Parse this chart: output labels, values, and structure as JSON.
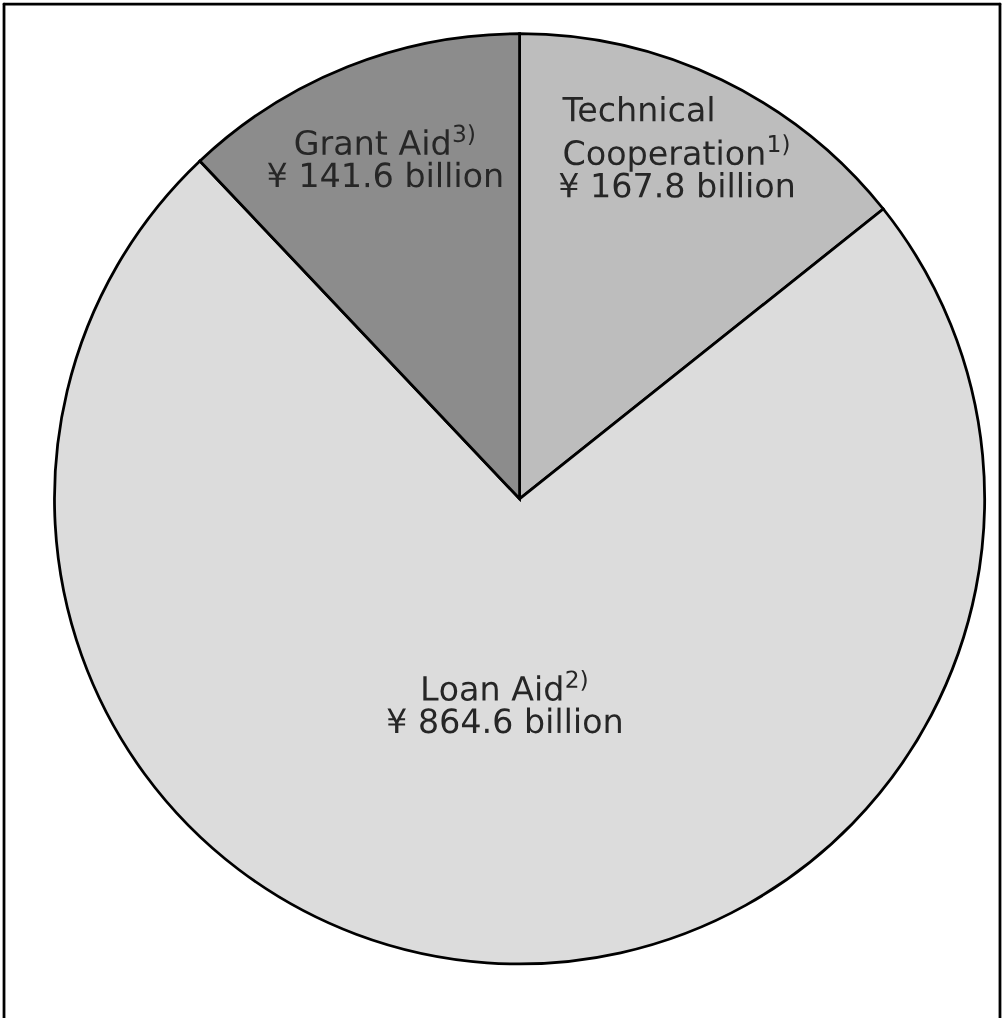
{
  "chart_data": {
    "type": "pie",
    "categories": [
      "Technical\nCooperation$^{1)}$",
      "Loan Aid$^{2)}$",
      "Grant Aid$^{3)}$"
    ],
    "values": [
      167.8,
      864.6,
      141.6
    ],
    "value_labels": [
      "¥ 167.8 billion",
      "¥ 864.6 billion",
      "¥ 141.6 billion"
    ],
    "colors": [
      "#bdbdbd",
      "#dcdcdc",
      "#8c8c8c"
    ]
  }
}
